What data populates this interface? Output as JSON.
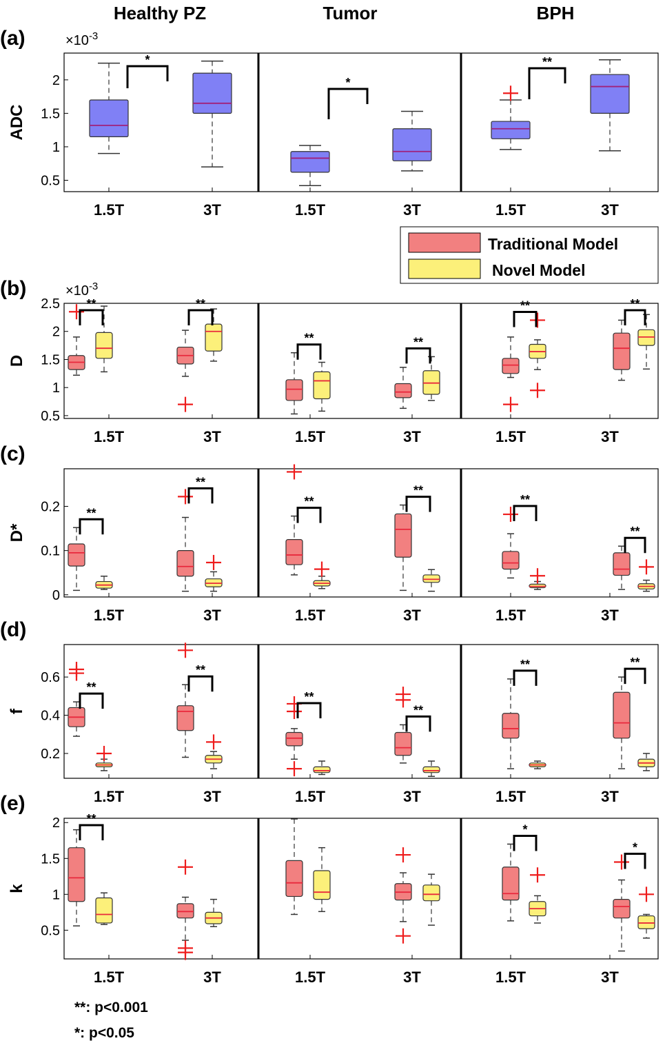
{
  "columns": [
    "Healthy PZ",
    "Tumor",
    "BPH"
  ],
  "legend": {
    "entries": [
      {
        "label": "Traditional Model",
        "color": "#f28080"
      },
      {
        "label": "Novel Model",
        "color": "#fcf07a"
      }
    ]
  },
  "footnotes": [
    "**: p<0.001",
    "*: p<0.05"
  ],
  "colors": {
    "adc_box": "#8080f5",
    "adc_median": "#a0207a",
    "traditional": "#f28080",
    "novel": "#fcf07a",
    "median": "#e8283c",
    "outlier": "#ee1c1c",
    "whisker": "#333333"
  },
  "chart_data": [
    {
      "panel": "(a)",
      "type": "box",
      "ylabel": "ADC",
      "exponent": "×10-3",
      "ylim": [
        0.33,
        2.4
      ],
      "yticks": [
        "0.5",
        "1",
        "1.5",
        "2"
      ],
      "ytick_values": [
        0.5,
        1,
        1.5,
        2
      ],
      "categories": [
        "1.5T",
        "3T",
        "1.5T",
        "3T",
        "1.5T",
        "3T"
      ],
      "groups": [
        {
          "column": "Healthy PZ",
          "field": "1.5T",
          "series": "ADC",
          "min": 0.9,
          "q1": 1.15,
          "median": 1.32,
          "q3": 1.7,
          "max": 2.25,
          "outliers": []
        },
        {
          "column": "Healthy PZ",
          "field": "3T",
          "series": "ADC",
          "min": 0.7,
          "q1": 1.5,
          "median": 1.65,
          "q3": 2.1,
          "max": 2.28,
          "outliers": []
        },
        {
          "column": "Tumor",
          "field": "1.5T",
          "series": "ADC",
          "min": 0.42,
          "q1": 0.62,
          "median": 0.83,
          "q3": 0.93,
          "max": 1.02,
          "outliers": []
        },
        {
          "column": "Tumor",
          "field": "3T",
          "series": "ADC",
          "min": 0.64,
          "q1": 0.79,
          "median": 0.93,
          "q3": 1.27,
          "max": 1.53,
          "outliers": []
        },
        {
          "column": "BPH",
          "field": "1.5T",
          "series": "ADC",
          "min": 0.96,
          "q1": 1.12,
          "median": 1.27,
          "q3": 1.38,
          "max": 1.7,
          "outliers": [
            1.8
          ]
        },
        {
          "column": "BPH",
          "field": "3T",
          "series": "ADC",
          "min": 0.94,
          "q1": 1.5,
          "median": 1.9,
          "q3": 2.08,
          "max": 2.3,
          "outliers": []
        }
      ],
      "significance": [
        {
          "column": "Healthy PZ",
          "label": "*",
          "between": "1.5T-3T"
        },
        {
          "column": "Tumor",
          "label": "*",
          "between": "1.5T-3T"
        },
        {
          "column": "BPH",
          "label": "**",
          "between": "1.5T-3T"
        }
      ]
    },
    {
      "panel": "(b)",
      "type": "box",
      "ylabel": "D",
      "exponent": "×10-3",
      "ylim": [
        0.45,
        2.5
      ],
      "yticks": [
        "0.5",
        "1",
        "1.5",
        "2",
        "2.5"
      ],
      "ytick_values": [
        0.5,
        1,
        1.5,
        2,
        2.5
      ],
      "categories": [
        "1.5T",
        "3T",
        "1.5T",
        "3T",
        "1.5T",
        "3T"
      ],
      "groups": [
        {
          "column": "Healthy PZ",
          "field": "1.5T",
          "series": "Traditional Model",
          "min": 1.22,
          "q1": 1.32,
          "median": 1.45,
          "q3": 1.57,
          "max": 1.9,
          "outliers": [
            2.35
          ]
        },
        {
          "column": "Healthy PZ",
          "field": "1.5T",
          "series": "Novel Model",
          "min": 1.28,
          "q1": 1.52,
          "median": 1.7,
          "q3": 1.98,
          "max": 2.45,
          "outliers": []
        },
        {
          "column": "Healthy PZ",
          "field": "3T",
          "series": "Traditional Model",
          "min": 1.2,
          "q1": 1.42,
          "median": 1.57,
          "q3": 1.72,
          "max": 2.02,
          "outliers": [
            0.7
          ]
        },
        {
          "column": "Healthy PZ",
          "field": "3T",
          "series": "Novel Model",
          "min": 1.47,
          "q1": 1.65,
          "median": 2.0,
          "q3": 2.13,
          "max": 2.4,
          "outliers": []
        },
        {
          "column": "Tumor",
          "field": "1.5T",
          "series": "Traditional Model",
          "min": 0.53,
          "q1": 0.77,
          "median": 0.97,
          "q3": 1.14,
          "max": 1.62,
          "outliers": []
        },
        {
          "column": "Tumor",
          "field": "1.5T",
          "series": "Novel Model",
          "min": 0.58,
          "q1": 0.8,
          "median": 1.12,
          "q3": 1.28,
          "max": 1.45,
          "outliers": []
        },
        {
          "column": "Tumor",
          "field": "3T",
          "series": "Traditional Model",
          "min": 0.63,
          "q1": 0.82,
          "median": 0.92,
          "q3": 1.07,
          "max": 1.36,
          "outliers": []
        },
        {
          "column": "Tumor",
          "field": "3T",
          "series": "Novel Model",
          "min": 0.77,
          "q1": 0.88,
          "median": 1.08,
          "q3": 1.3,
          "max": 1.55,
          "outliers": []
        },
        {
          "column": "BPH",
          "field": "1.5T",
          "series": "Traditional Model",
          "min": 1.18,
          "q1": 1.25,
          "median": 1.4,
          "q3": 1.52,
          "max": 1.9,
          "outliers": [
            0.7
          ]
        },
        {
          "column": "BPH",
          "field": "1.5T",
          "series": "Novel Model",
          "min": 1.32,
          "q1": 1.52,
          "median": 1.64,
          "q3": 1.77,
          "max": 1.85,
          "outliers": [
            2.2,
            0.95
          ]
        },
        {
          "column": "BPH",
          "field": "3T",
          "series": "Traditional Model",
          "min": 1.13,
          "q1": 1.32,
          "median": 1.7,
          "q3": 1.97,
          "max": 2.2,
          "outliers": []
        },
        {
          "column": "BPH",
          "field": "3T",
          "series": "Novel Model",
          "min": 1.33,
          "q1": 1.75,
          "median": 1.9,
          "q3": 2.03,
          "max": 2.3,
          "outliers": []
        }
      ],
      "significance": [
        {
          "column": "Healthy PZ",
          "field": "1.5T",
          "label": "**"
        },
        {
          "column": "Healthy PZ",
          "field": "3T",
          "label": "**"
        },
        {
          "column": "Tumor",
          "field": "1.5T",
          "label": "**"
        },
        {
          "column": "Tumor",
          "field": "3T",
          "label": "**"
        },
        {
          "column": "BPH",
          "field": "1.5T",
          "label": "**"
        },
        {
          "column": "BPH",
          "field": "3T",
          "label": "**"
        }
      ]
    },
    {
      "panel": "(c)",
      "type": "box",
      "ylabel": "D*",
      "exponent": "",
      "ylim": [
        -0.005,
        0.285
      ],
      "yticks": [
        "0",
        "0.1",
        "0.2"
      ],
      "ytick_values": [
        0,
        0.1,
        0.2
      ],
      "categories": [
        "1.5T",
        "3T",
        "1.5T",
        "3T",
        "1.5T",
        "3T"
      ],
      "groups": [
        {
          "column": "Healthy PZ",
          "field": "1.5T",
          "series": "Traditional Model",
          "min": 0.01,
          "q1": 0.065,
          "median": 0.095,
          "q3": 0.115,
          "max": 0.152,
          "outliers": []
        },
        {
          "column": "Healthy PZ",
          "field": "1.5T",
          "series": "Novel Model",
          "min": 0.012,
          "q1": 0.015,
          "median": 0.022,
          "q3": 0.03,
          "max": 0.042,
          "outliers": []
        },
        {
          "column": "Healthy PZ",
          "field": "3T",
          "series": "Traditional Model",
          "min": 0.008,
          "q1": 0.042,
          "median": 0.064,
          "q3": 0.1,
          "max": 0.175,
          "outliers": [
            0.222
          ]
        },
        {
          "column": "Healthy PZ",
          "field": "3T",
          "series": "Novel Model",
          "min": 0.008,
          "q1": 0.018,
          "median": 0.026,
          "q3": 0.036,
          "max": 0.052,
          "outliers": [
            0.073
          ]
        },
        {
          "column": "Tumor",
          "field": "1.5T",
          "series": "Traditional Model",
          "min": 0.045,
          "q1": 0.068,
          "median": 0.09,
          "q3": 0.125,
          "max": 0.178,
          "outliers": [
            0.278
          ]
        },
        {
          "column": "Tumor",
          "field": "1.5T",
          "series": "Novel Model",
          "min": 0.014,
          "q1": 0.02,
          "median": 0.026,
          "q3": 0.032,
          "max": 0.042,
          "outliers": [
            0.058
          ]
        },
        {
          "column": "Tumor",
          "field": "3T",
          "series": "Traditional Model",
          "min": 0.01,
          "q1": 0.085,
          "median": 0.148,
          "q3": 0.183,
          "max": 0.203,
          "outliers": []
        },
        {
          "column": "Tumor",
          "field": "3T",
          "series": "Novel Model",
          "min": 0.008,
          "q1": 0.028,
          "median": 0.035,
          "q3": 0.045,
          "max": 0.057,
          "outliers": []
        },
        {
          "column": "BPH",
          "field": "1.5T",
          "series": "Traditional Model",
          "min": 0.038,
          "q1": 0.058,
          "median": 0.072,
          "q3": 0.098,
          "max": 0.138,
          "outliers": [
            0.182
          ]
        },
        {
          "column": "BPH",
          "field": "1.5T",
          "series": "Novel Model",
          "min": 0.012,
          "q1": 0.016,
          "median": 0.019,
          "q3": 0.024,
          "max": 0.03,
          "outliers": [
            0.043
          ]
        },
        {
          "column": "BPH",
          "field": "3T",
          "series": "Traditional Model",
          "min": 0.012,
          "q1": 0.044,
          "median": 0.058,
          "q3": 0.095,
          "max": 0.11,
          "outliers": []
        },
        {
          "column": "BPH",
          "field": "3T",
          "series": "Novel Model",
          "min": 0.008,
          "q1": 0.013,
          "median": 0.019,
          "q3": 0.025,
          "max": 0.033,
          "outliers": [
            0.063
          ]
        }
      ],
      "significance": [
        {
          "column": "Healthy PZ",
          "field": "1.5T",
          "label": "**"
        },
        {
          "column": "Healthy PZ",
          "field": "3T",
          "label": "**"
        },
        {
          "column": "Tumor",
          "field": "1.5T",
          "label": "**"
        },
        {
          "column": "Tumor",
          "field": "3T",
          "label": "**"
        },
        {
          "column": "BPH",
          "field": "1.5T",
          "label": "**"
        },
        {
          "column": "BPH",
          "field": "3T",
          "label": "**"
        }
      ]
    },
    {
      "panel": "(d)",
      "type": "box",
      "ylabel": "f",
      "exponent": "",
      "ylim": [
        0.07,
        0.77
      ],
      "yticks": [
        "0.2",
        "0.4",
        "0.6"
      ],
      "ytick_values": [
        0.2,
        0.4,
        0.6
      ],
      "categories": [
        "1.5T",
        "3T",
        "1.5T",
        "3T",
        "1.5T",
        "3T"
      ],
      "groups": [
        {
          "column": "Healthy PZ",
          "field": "1.5T",
          "series": "Traditional Model",
          "min": 0.29,
          "q1": 0.34,
          "median": 0.39,
          "q3": 0.44,
          "max": 0.47,
          "outliers": [
            0.64,
            0.62
          ]
        },
        {
          "column": "Healthy PZ",
          "field": "1.5T",
          "series": "Novel Model",
          "min": 0.11,
          "q1": 0.13,
          "median": 0.14,
          "q3": 0.15,
          "max": 0.17,
          "outliers": [
            0.2
          ]
        },
        {
          "column": "Healthy PZ",
          "field": "3T",
          "series": "Traditional Model",
          "min": 0.18,
          "q1": 0.32,
          "median": 0.42,
          "q3": 0.45,
          "max": 0.56,
          "outliers": [
            0.74
          ]
        },
        {
          "column": "Healthy PZ",
          "field": "3T",
          "series": "Novel Model",
          "min": 0.12,
          "q1": 0.15,
          "median": 0.17,
          "q3": 0.19,
          "max": 0.21,
          "outliers": [
            0.26
          ]
        },
        {
          "column": "Tumor",
          "field": "1.5T",
          "series": "Traditional Model",
          "min": 0.17,
          "q1": 0.24,
          "median": 0.28,
          "q3": 0.31,
          "max": 0.33,
          "outliers": [
            0.46,
            0.42,
            0.12
          ]
        },
        {
          "column": "Tumor",
          "field": "1.5T",
          "series": "Novel Model",
          "min": 0.09,
          "q1": 0.1,
          "median": 0.11,
          "q3": 0.13,
          "max": 0.16,
          "outliers": []
        },
        {
          "column": "Tumor",
          "field": "3T",
          "series": "Traditional Model",
          "min": 0.15,
          "q1": 0.19,
          "median": 0.23,
          "q3": 0.31,
          "max": 0.35,
          "outliers": [
            0.51,
            0.48
          ]
        },
        {
          "column": "Tumor",
          "field": "3T",
          "series": "Novel Model",
          "min": 0.08,
          "q1": 0.1,
          "median": 0.11,
          "q3": 0.13,
          "max": 0.16,
          "outliers": []
        },
        {
          "column": "BPH",
          "field": "1.5T",
          "series": "Traditional Model",
          "min": 0.12,
          "q1": 0.28,
          "median": 0.33,
          "q3": 0.41,
          "max": 0.59,
          "outliers": []
        },
        {
          "column": "BPH",
          "field": "1.5T",
          "series": "Novel Model",
          "min": 0.12,
          "q1": 0.13,
          "median": 0.14,
          "q3": 0.15,
          "max": 0.16,
          "outliers": []
        },
        {
          "column": "BPH",
          "field": "3T",
          "series": "Traditional Model",
          "min": 0.12,
          "q1": 0.28,
          "median": 0.36,
          "q3": 0.52,
          "max": 0.6,
          "outliers": []
        },
        {
          "column": "BPH",
          "field": "3T",
          "series": "Novel Model",
          "min": 0.11,
          "q1": 0.13,
          "median": 0.15,
          "q3": 0.17,
          "max": 0.2,
          "outliers": []
        }
      ],
      "significance": [
        {
          "column": "Healthy PZ",
          "field": "1.5T",
          "label": "**"
        },
        {
          "column": "Healthy PZ",
          "field": "3T",
          "label": "**"
        },
        {
          "column": "Tumor",
          "field": "1.5T",
          "label": "**"
        },
        {
          "column": "Tumor",
          "field": "3T",
          "label": "**"
        },
        {
          "column": "BPH",
          "field": "1.5T",
          "label": "**"
        },
        {
          "column": "BPH",
          "field": "3T",
          "label": "**"
        }
      ]
    },
    {
      "panel": "(e)",
      "type": "box",
      "ylabel": "k",
      "exponent": "",
      "ylim": [
        0.1,
        2.06
      ],
      "yticks": [
        "0.5",
        "1",
        "1.5",
        "2"
      ],
      "ytick_values": [
        0.5,
        1,
        1.5,
        2
      ],
      "categories": [
        "1.5T",
        "3T",
        "1.5T",
        "3T",
        "1.5T",
        "3T"
      ],
      "groups": [
        {
          "column": "Healthy PZ",
          "field": "1.5T",
          "series": "Traditional Model",
          "min": 0.56,
          "q1": 0.9,
          "median": 1.23,
          "q3": 1.65,
          "max": 1.9,
          "outliers": []
        },
        {
          "column": "Healthy PZ",
          "field": "1.5T",
          "series": "Novel Model",
          "min": 0.58,
          "q1": 0.6,
          "median": 0.72,
          "q3": 0.95,
          "max": 1.02,
          "outliers": []
        },
        {
          "column": "Healthy PZ",
          "field": "3T",
          "series": "Traditional Model",
          "min": 0.36,
          "q1": 0.67,
          "median": 0.76,
          "q3": 0.87,
          "max": 0.96,
          "outliers": [
            1.38,
            0.25,
            0.19
          ]
        },
        {
          "column": "Healthy PZ",
          "field": "3T",
          "series": "Novel Model",
          "min": 0.55,
          "q1": 0.59,
          "median": 0.67,
          "q3": 0.75,
          "max": 0.93,
          "outliers": []
        },
        {
          "column": "Tumor",
          "field": "1.5T",
          "series": "Traditional Model",
          "min": 0.72,
          "q1": 0.97,
          "median": 1.16,
          "q3": 1.47,
          "max": 2.05,
          "outliers": []
        },
        {
          "column": "Tumor",
          "field": "1.5T",
          "series": "Novel Model",
          "min": 0.76,
          "q1": 0.93,
          "median": 1.03,
          "q3": 1.33,
          "max": 1.65,
          "outliers": []
        },
        {
          "column": "Tumor",
          "field": "3T",
          "series": "Traditional Model",
          "min": 0.62,
          "q1": 0.92,
          "median": 1.03,
          "q3": 1.15,
          "max": 1.3,
          "outliers": [
            1.55,
            0.42
          ]
        },
        {
          "column": "Tumor",
          "field": "3T",
          "series": "Novel Model",
          "min": 0.57,
          "q1": 0.91,
          "median": 1.0,
          "q3": 1.13,
          "max": 1.28,
          "outliers": []
        },
        {
          "column": "BPH",
          "field": "1.5T",
          "series": "Traditional Model",
          "min": 0.63,
          "q1": 0.92,
          "median": 1.01,
          "q3": 1.38,
          "max": 1.7,
          "outliers": []
        },
        {
          "column": "BPH",
          "field": "1.5T",
          "series": "Novel Model",
          "min": 0.6,
          "q1": 0.7,
          "median": 0.8,
          "q3": 0.9,
          "max": 0.98,
          "outliers": [
            1.27
          ]
        },
        {
          "column": "BPH",
          "field": "3T",
          "series": "Traditional Model",
          "min": 0.21,
          "q1": 0.67,
          "median": 0.83,
          "q3": 0.93,
          "max": 1.2,
          "outliers": [
            1.45
          ]
        },
        {
          "column": "BPH",
          "field": "3T",
          "series": "Novel Model",
          "min": 0.39,
          "q1": 0.52,
          "median": 0.6,
          "q3": 0.7,
          "max": 0.72,
          "outliers": [
            1.0
          ]
        }
      ],
      "significance": [
        {
          "column": "Healthy PZ",
          "field": "1.5T",
          "label": "**"
        },
        {
          "column": "BPH",
          "field": "1.5T",
          "label": "*"
        },
        {
          "column": "BPH",
          "field": "3T",
          "label": "*"
        }
      ]
    }
  ]
}
